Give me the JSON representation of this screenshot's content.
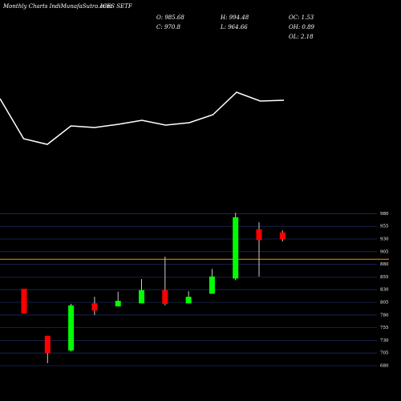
{
  "header": {
    "title": "Monthly Charts IndiMunafaSutra.com",
    "symbol": "ICES SETF",
    "stats": [
      "O: 985.68",
      "H: 994.48",
      "OC: 1.53",
      "C: 970.8",
      "L: 964.66",
      "OH: 0.89",
      "OL: 2.18"
    ]
  },
  "chart_data": [
    {
      "type": "line",
      "color": "#ffffff",
      "categories": [
        null,
        null,
        null,
        null,
        null,
        null,
        null,
        null,
        null,
        null,
        null,
        null,
        null
      ],
      "values": [
        77,
        27,
        20,
        43,
        41,
        45,
        50,
        44,
        47,
        57,
        85,
        74,
        75
      ]
    },
    {
      "type": "candlestick",
      "up_color": "#00ff00",
      "down_color": "#ff0000",
      "grid": true,
      "grid_color": "#1c2b5c",
      "categories": [
        null,
        null,
        null,
        null,
        null,
        null,
        null,
        null,
        null,
        null,
        null,
        null
      ],
      "open": [
        832,
        739,
        710,
        803,
        797,
        803,
        829,
        803,
        822,
        852,
        949,
        943
      ],
      "high": [
        832,
        739,
        802,
        816,
        826,
        851,
        895,
        827,
        871,
        982,
        963,
        947
      ],
      "low": [
        783,
        685,
        708,
        780,
        797,
        803,
        799,
        803,
        822,
        849,
        856,
        925
      ],
      "close": [
        783,
        705,
        799,
        789,
        808,
        829,
        802,
        816,
        856,
        973,
        928,
        930
      ],
      "ylim": [
        673,
        1000
      ],
      "yticks": [
        680,
        705,
        730,
        755,
        780,
        805,
        830,
        855,
        880,
        905,
        930,
        955,
        980
      ],
      "hline": {
        "value": 890,
        "color": "#ff8c00"
      }
    }
  ]
}
